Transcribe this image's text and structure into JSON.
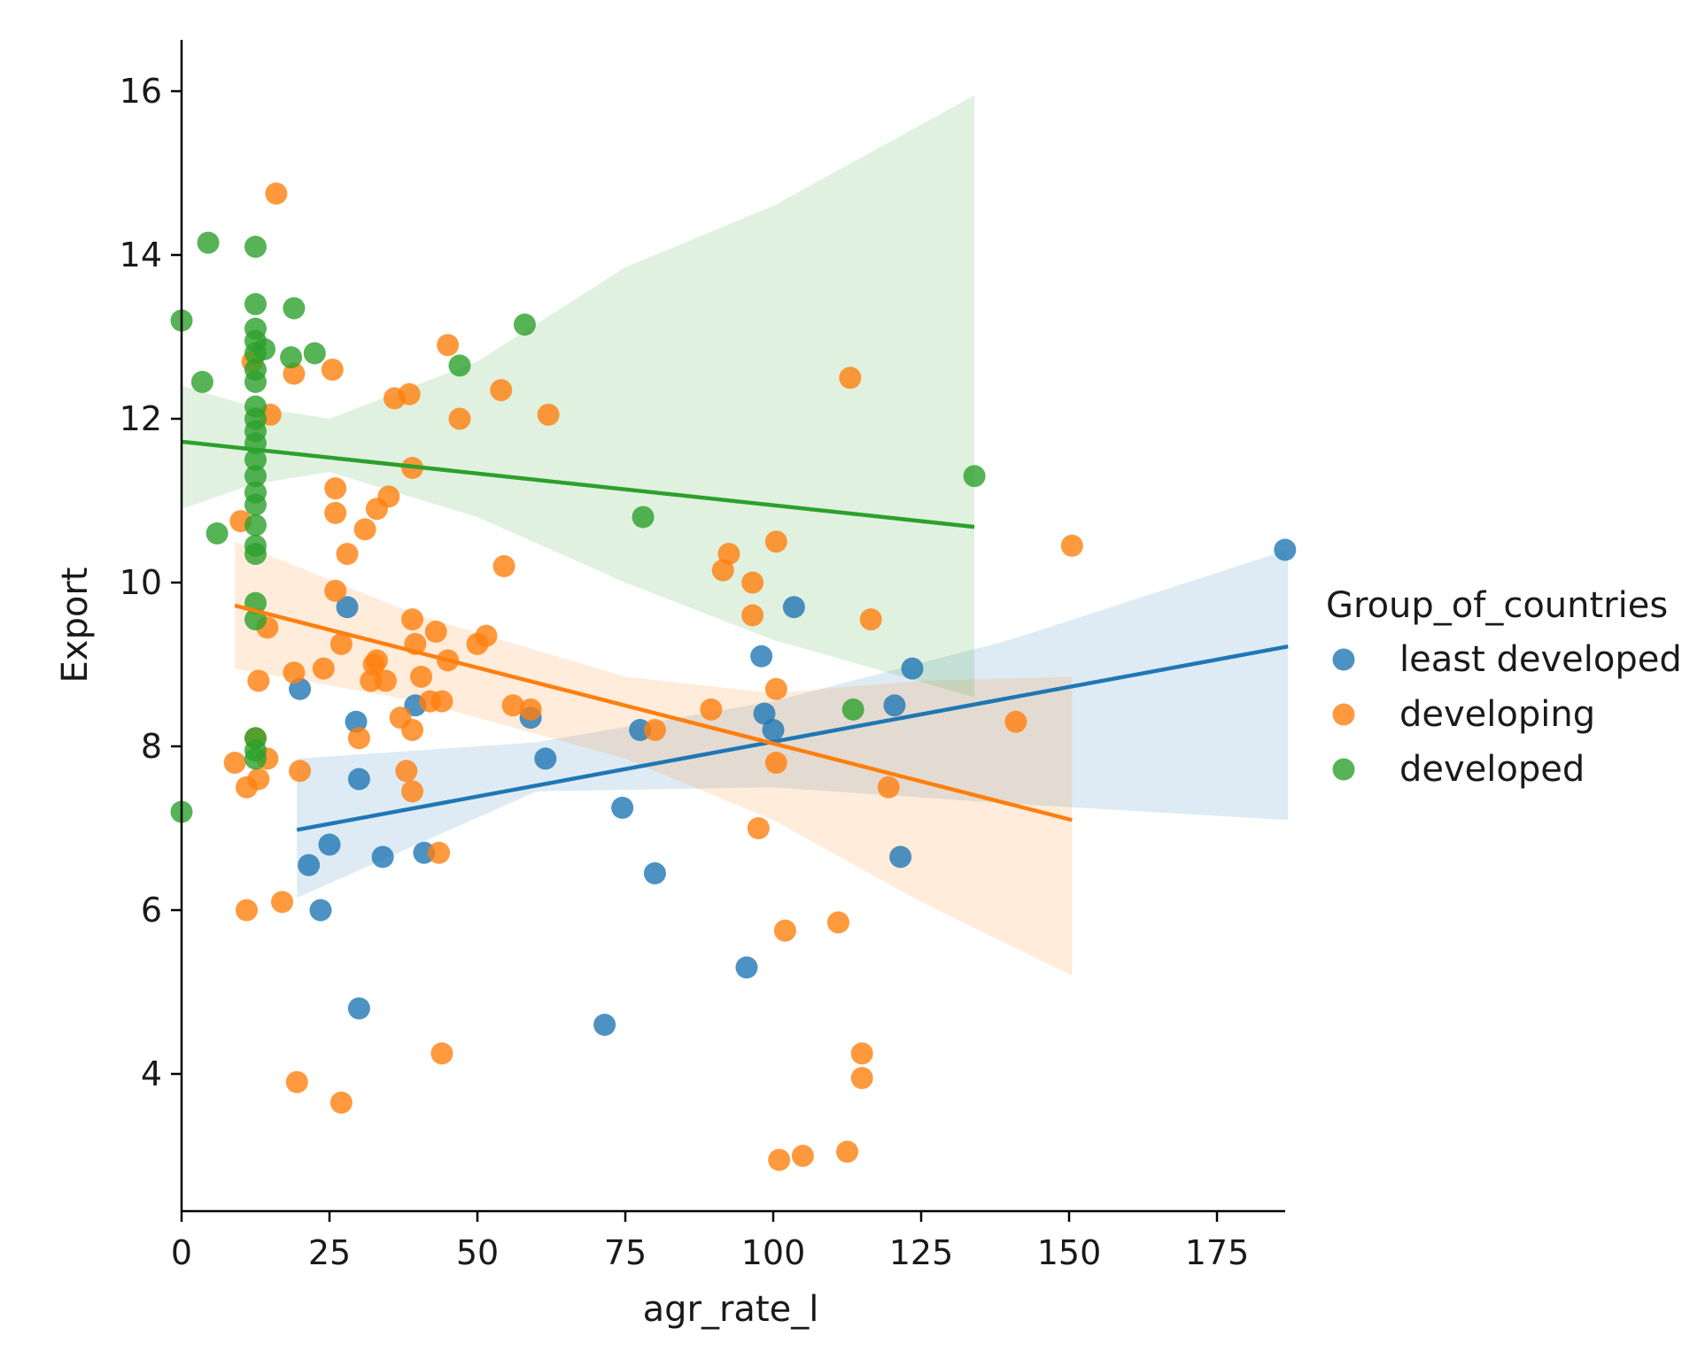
{
  "chart_data": {
    "type": "scatter",
    "xlabel": "agr_rate_l",
    "ylabel": "Export",
    "xlim": [
      0,
      187
    ],
    "ylim": [
      2.4,
      16.6
    ],
    "x_ticks": [
      "0",
      "25",
      "50",
      "75",
      "100",
      "125",
      "150",
      "175"
    ],
    "y_ticks": [
      "4",
      "6",
      "8",
      "10",
      "12",
      "14",
      "16"
    ],
    "legend": {
      "title": "Group_of_countries",
      "placement": "right"
    },
    "series": [
      {
        "name": "least developed",
        "color": "#1f77b4",
        "points": [
          [
            20,
            8.7
          ],
          [
            21.5,
            6.55
          ],
          [
            23.5,
            6.0
          ],
          [
            25,
            6.8
          ],
          [
            28,
            9.7
          ],
          [
            29.5,
            8.3
          ],
          [
            30,
            7.6
          ],
          [
            30,
            4.8
          ],
          [
            34,
            6.65
          ],
          [
            39.5,
            8.5
          ],
          [
            41,
            6.7
          ],
          [
            59,
            8.35
          ],
          [
            61.5,
            7.85
          ],
          [
            71.5,
            4.6
          ],
          [
            74.5,
            7.25
          ],
          [
            77.5,
            8.2
          ],
          [
            80,
            6.45
          ],
          [
            95.5,
            5.3
          ],
          [
            98,
            9.1
          ],
          [
            98.5,
            8.4
          ],
          [
            100,
            8.2
          ],
          [
            103.5,
            9.7
          ],
          [
            120.5,
            8.5
          ],
          [
            121.5,
            6.65
          ],
          [
            123.5,
            8.95
          ],
          [
            186.5,
            10.4
          ]
        ],
        "fit": {
          "x0": 19.5,
          "y0": 6.98,
          "x1": 187,
          "y1": 9.22
        },
        "ci": [
          [
            19.5,
            7.85,
            6.15
          ],
          [
            60,
            8.05,
            7.45
          ],
          [
            100,
            8.55,
            7.5
          ],
          [
            140,
            9.3,
            7.3
          ],
          [
            187,
            10.4,
            7.1
          ]
        ]
      },
      {
        "name": "developing",
        "color": "#ff7f0e",
        "points": [
          [
            16,
            14.75
          ],
          [
            12,
            12.7
          ],
          [
            15,
            12.05
          ],
          [
            19,
            12.55
          ],
          [
            25.5,
            12.6
          ],
          [
            45,
            12.9
          ],
          [
            36,
            12.25
          ],
          [
            38.5,
            12.3
          ],
          [
            47,
            12.0
          ],
          [
            54,
            12.35
          ],
          [
            62,
            12.05
          ],
          [
            113,
            12.5
          ],
          [
            26,
            11.15
          ],
          [
            39,
            11.4
          ],
          [
            35,
            11.05
          ],
          [
            33,
            10.9
          ],
          [
            31,
            10.65
          ],
          [
            28,
            10.35
          ],
          [
            26,
            10.85
          ],
          [
            10,
            10.75
          ],
          [
            26,
            9.9
          ],
          [
            27,
            9.25
          ],
          [
            24,
            8.95
          ],
          [
            19,
            8.9
          ],
          [
            32,
            8.8
          ],
          [
            32.5,
            9.0
          ],
          [
            33,
            9.05
          ],
          [
            34.5,
            8.8
          ],
          [
            37,
            8.35
          ],
          [
            38,
            7.7
          ],
          [
            39,
            8.2
          ],
          [
            39,
            7.45
          ],
          [
            39,
            9.55
          ],
          [
            39.5,
            9.25
          ],
          [
            40.5,
            8.85
          ],
          [
            42,
            8.55
          ],
          [
            43,
            9.4
          ],
          [
            44,
            8.55
          ],
          [
            45,
            9.05
          ],
          [
            50,
            9.25
          ],
          [
            51.5,
            9.35
          ],
          [
            54.5,
            10.2
          ],
          [
            56,
            8.5
          ],
          [
            59,
            8.45
          ],
          [
            13,
            8.8
          ],
          [
            14.5,
            9.45
          ],
          [
            12.5,
            8.1
          ],
          [
            14.5,
            7.85
          ],
          [
            9,
            7.8
          ],
          [
            11,
            7.5
          ],
          [
            13,
            7.6
          ],
          [
            20,
            7.7
          ],
          [
            30,
            8.1
          ],
          [
            11,
            6.0
          ],
          [
            17,
            6.1
          ],
          [
            43.5,
            6.7
          ],
          [
            19.5,
            3.9
          ],
          [
            27,
            3.65
          ],
          [
            44,
            4.25
          ],
          [
            91.5,
            10.15
          ],
          [
            92.5,
            10.35
          ],
          [
            96.5,
            10.0
          ],
          [
            96.5,
            9.6
          ],
          [
            100.5,
            10.5
          ],
          [
            116.5,
            9.55
          ],
          [
            150.5,
            10.45
          ],
          [
            100.5,
            8.7
          ],
          [
            89.5,
            8.45
          ],
          [
            80,
            8.2
          ],
          [
            100.5,
            7.8
          ],
          [
            119.5,
            7.5
          ],
          [
            97.5,
            7.0
          ],
          [
            141,
            8.3
          ],
          [
            102,
            5.75
          ],
          [
            111,
            5.85
          ],
          [
            101,
            2.95
          ],
          [
            105,
            3.0
          ],
          [
            112.5,
            3.05
          ],
          [
            115,
            4.25
          ],
          [
            115,
            3.95
          ]
        ],
        "fit": {
          "x0": 9,
          "y0": 9.72,
          "x1": 150.5,
          "y1": 7.1
        },
        "ci": [
          [
            9,
            10.5,
            8.95
          ],
          [
            40,
            9.6,
            8.55
          ],
          [
            75,
            8.85,
            7.85
          ],
          [
            100,
            8.65,
            7.1
          ],
          [
            125,
            8.8,
            6.1
          ],
          [
            150.5,
            8.85,
            5.2
          ]
        ]
      },
      {
        "name": "developed",
        "color": "#2ca02c",
        "points": [
          [
            0,
            13.2
          ],
          [
            0,
            7.2
          ],
          [
            3.5,
            12.45
          ],
          [
            4.5,
            14.15
          ],
          [
            6,
            10.6
          ],
          [
            12.5,
            14.1
          ],
          [
            12.5,
            13.4
          ],
          [
            12.5,
            13.1
          ],
          [
            12.5,
            12.95
          ],
          [
            12.5,
            12.8
          ],
          [
            12.5,
            12.6
          ],
          [
            12.5,
            12.45
          ],
          [
            12.5,
            12.15
          ],
          [
            12.5,
            12.0
          ],
          [
            12.5,
            11.85
          ],
          [
            12.5,
            11.7
          ],
          [
            12.5,
            11.5
          ],
          [
            12.5,
            11.3
          ],
          [
            12.5,
            11.1
          ],
          [
            12.5,
            10.95
          ],
          [
            12.5,
            10.7
          ],
          [
            12.5,
            10.45
          ],
          [
            12.5,
            10.35
          ],
          [
            12.5,
            9.75
          ],
          [
            12.5,
            9.55
          ],
          [
            12.5,
            8.1
          ],
          [
            12.5,
            7.95
          ],
          [
            12.5,
            7.85
          ],
          [
            14,
            12.85
          ],
          [
            19,
            13.35
          ],
          [
            18.5,
            12.75
          ],
          [
            22.5,
            12.8
          ],
          [
            47,
            12.65
          ],
          [
            58,
            13.15
          ],
          [
            78,
            10.8
          ],
          [
            113.5,
            8.45
          ],
          [
            134,
            11.3
          ]
        ],
        "fit": {
          "x0": 0,
          "y0": 11.72,
          "x1": 134,
          "y1": 10.68
        },
        "ci": [
          [
            0,
            12.4,
            10.9
          ],
          [
            12,
            12.15,
            11.2
          ],
          [
            25,
            12.0,
            11.35
          ],
          [
            50,
            12.7,
            10.8
          ],
          [
            75,
            13.85,
            10.0
          ],
          [
            100,
            14.6,
            9.3
          ],
          [
            134,
            15.95,
            8.6
          ]
        ]
      }
    ]
  }
}
